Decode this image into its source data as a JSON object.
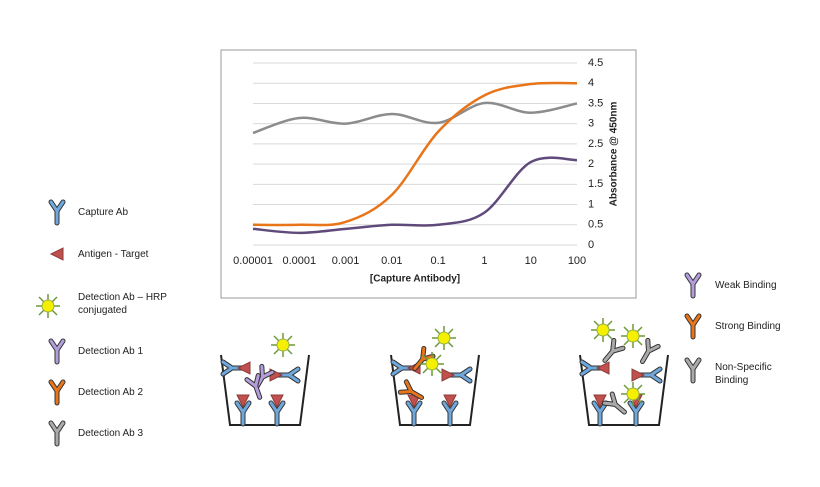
{
  "chart_data": {
    "type": "line",
    "x": [
      1e-05,
      0.0001,
      0.001,
      0.01,
      0.1,
      1,
      10,
      100
    ],
    "x_scale": "log",
    "xlim": [
      1e-05,
      100
    ],
    "xticks": [
      1e-05,
      0.0001,
      0.001,
      0.01,
      0.1,
      1,
      10,
      100
    ],
    "ylim": [
      0,
      4.5
    ],
    "yticks": [
      0,
      0.5,
      1,
      1.5,
      2,
      2.5,
      3,
      3.5,
      4,
      4.5
    ],
    "y_axis_side": "right",
    "grid": true,
    "x_label": "[Capture Antibody]",
    "y_label": "Absorbance @ 450nm",
    "series": [
      {
        "color": "#8c8c8c",
        "values": [
          2.77,
          3.14,
          3.0,
          3.24,
          3.02,
          3.51,
          3.27,
          3.5
        ]
      },
      {
        "color": "#e8751a",
        "values": [
          0.5,
          0.5,
          0.57,
          1.24,
          2.8,
          3.7,
          3.98,
          4.0
        ]
      },
      {
        "color": "#604a7b",
        "values": [
          0.4,
          0.3,
          0.4,
          0.5,
          0.5,
          0.8,
          2.05,
          2.1
        ]
      }
    ]
  },
  "legend_left": [
    "Capture Ab",
    "Antigen - Target",
    "Detection Ab – HRP conjugated",
    "Detection Ab 1",
    "Detection Ab 2",
    "Detection Ab 3"
  ],
  "legend_right": [
    "Weak Binding",
    "Strong Binding",
    "Non-Specific Binding"
  ]
}
